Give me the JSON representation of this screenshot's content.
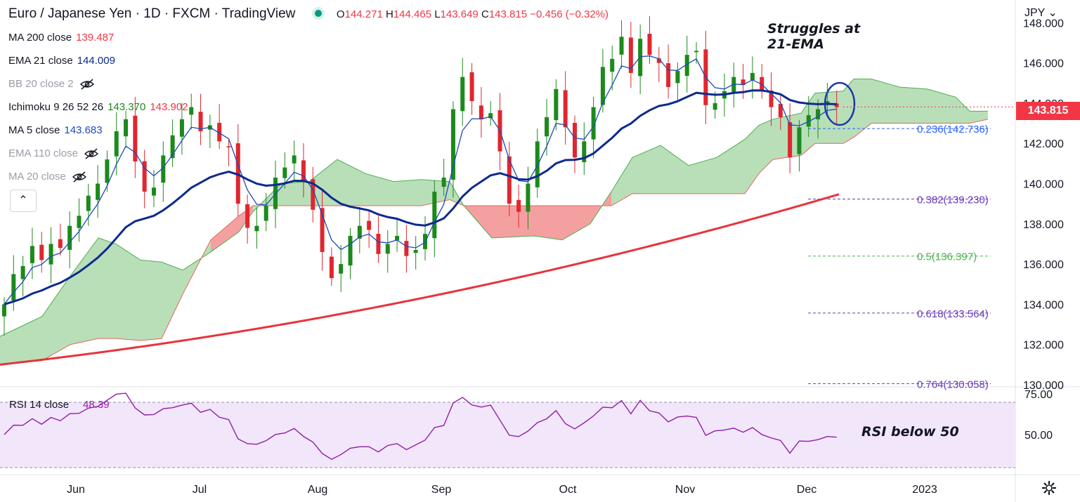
{
  "header": {
    "title": "Euro / Japanese Yen · 1D · FXCM · TradingView",
    "ohlc": {
      "o_label": "O",
      "o": "144.271",
      "h_label": "H",
      "h": "144.465",
      "l_label": "L",
      "l": "143.649",
      "c_label": "C",
      "c": "143.815",
      "chg": "−0.456 (−0.32%)"
    },
    "status_color": "#089981"
  },
  "indicators": [
    {
      "name": "MA 200 close",
      "value": "139.487",
      "value2": "",
      "color": "#f23645",
      "hidden": false
    },
    {
      "name": "EMA 21 close",
      "value": "144.009",
      "value2": "",
      "color": "#0d2a8e",
      "hidden": false
    },
    {
      "name": "BB 20 close 2",
      "value": "",
      "value2": "",
      "color": "#9a9ea8",
      "hidden": true
    },
    {
      "name": "Ichimoku 9 26 52 26",
      "value": "143.370",
      "value2": "143.902",
      "color": "#1b8a1b",
      "color2": "#f23645",
      "hidden": false
    },
    {
      "name": "MA 5 close",
      "value": "143.683",
      "value2": "",
      "color": "#1e4bb8",
      "hidden": false
    },
    {
      "name": "EMA 110 close",
      "value": "",
      "value2": "",
      "color": "#9a9ea8",
      "hidden": true
    },
    {
      "name": "MA 20 close",
      "value": "",
      "value2": "",
      "color": "#9a9ea8",
      "hidden": true
    }
  ],
  "currency": "JPY",
  "last_price": "143.815",
  "annotations": {
    "ema_note": [
      "Struggles at",
      "21-EMA"
    ],
    "rsi_note": "RSI below 50"
  },
  "rsi": {
    "label": "RSI 14 close",
    "value": "48.39",
    "ticks": [
      "75.00",
      "50.00"
    ]
  },
  "colors": {
    "up": "#1b8a1b",
    "down": "#e0262f",
    "cloud_bull": "#b9dfb9",
    "cloud_bear": "#f5a0a0",
    "rsi_line": "#8e1fa6",
    "rsi_band": "#f2e6fb",
    "ema21": "#0d2a8e",
    "ma5": "#1e4bb8",
    "ma200": "#e8333a"
  },
  "chart_data": [
    {
      "type": "candlestick",
      "title": "Euro / Japanese Yen · 1D · FXCM",
      "x_axis": {
        "ticks": [
          "Jun",
          "Jul",
          "Aug",
          "Sep",
          "Oct",
          "Nov",
          "Dec",
          "2023"
        ]
      },
      "y_axis": {
        "ticks": [
          "130.000",
          "132.000",
          "134.000",
          "136.000",
          "138.000",
          "140.000",
          "142.000",
          "144.000",
          "146.000",
          "148.000"
        ],
        "range": [
          129.8,
          148.6
        ]
      },
      "fib_levels": [
        {
          "label": "0.236(142.736)",
          "value": 142.736,
          "color": "#2962ff"
        },
        {
          "label": "0.382(139.230)",
          "value": 139.23,
          "color": "#673ab7"
        },
        {
          "label": "0.5(136.397)",
          "value": 136.397,
          "color": "#4caf50"
        },
        {
          "label": "0.618(133.564)",
          "value": 133.564,
          "color": "#673ab7"
        },
        {
          "label": "0.764(130.058)",
          "value": 130.058,
          "color": "#673ab7"
        }
      ],
      "ohlc_close_approx": [
        134.0,
        135.5,
        135.9,
        136.9,
        136.2,
        137.0,
        136.8,
        137.9,
        138.4,
        139.4,
        140.0,
        141.2,
        142.6,
        143.2,
        141.1,
        139.6,
        139.8,
        141.4,
        142.4,
        143.2,
        143.8,
        142.6,
        142.9,
        142.1,
        141.8,
        139.0,
        137.8,
        137.9,
        138.9,
        140.3,
        140.8,
        141.4,
        140.1,
        138.7,
        136.6,
        135.3,
        136.0,
        137.4,
        137.9,
        137.7,
        136.5,
        137.0,
        137.4,
        136.4,
        136.7,
        137.5,
        139.6,
        140.3,
        143.7,
        145.3,
        144.1,
        143.2,
        143.5,
        141.6,
        139.0,
        138.6,
        140.0,
        142.1,
        143.3,
        144.7,
        142.8,
        141.3,
        142.1,
        143.8,
        145.8,
        146.2,
        147.3,
        145.5,
        147.2,
        146.4,
        146.0,
        144.8,
        145.6,
        146.4,
        146.6,
        143.9,
        144.0,
        144.6,
        145.3,
        144.9,
        145.5,
        144.6,
        143.8,
        143.3,
        141.3,
        142.8,
        143.4,
        143.7,
        144.1,
        143.8
      ],
      "series": [
        {
          "name": "MA 200 close",
          "last": 139.487
        },
        {
          "name": "EMA 21 close",
          "last": 144.009
        },
        {
          "name": "MA 5 close",
          "last": 143.683
        }
      ],
      "last_price": 143.815
    },
    {
      "type": "line",
      "title": "RSI 14 close",
      "y_axis": {
        "ticks": [
          "75.00",
          "50.00"
        ]
      },
      "last": 48.39
    }
  ]
}
